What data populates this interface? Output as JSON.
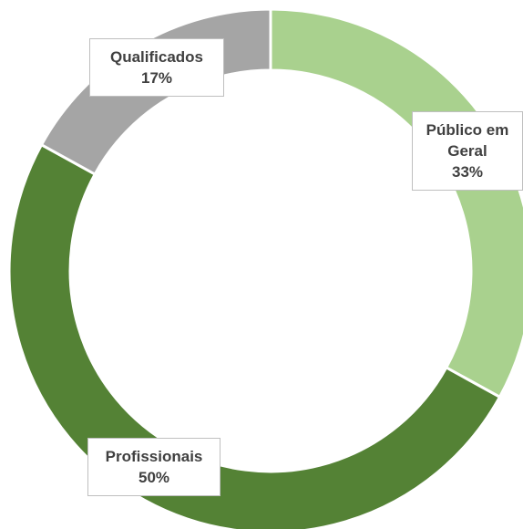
{
  "chart_data": {
    "type": "donut",
    "categories": [
      "Público em Geral",
      "Profissionais",
      "Qualificados"
    ],
    "values": [
      33,
      50,
      17
    ],
    "value_labels": [
      "33%",
      "50%",
      "17%"
    ],
    "colors": [
      "#a9d18e",
      "#548235",
      "#a5a5a5"
    ]
  }
}
